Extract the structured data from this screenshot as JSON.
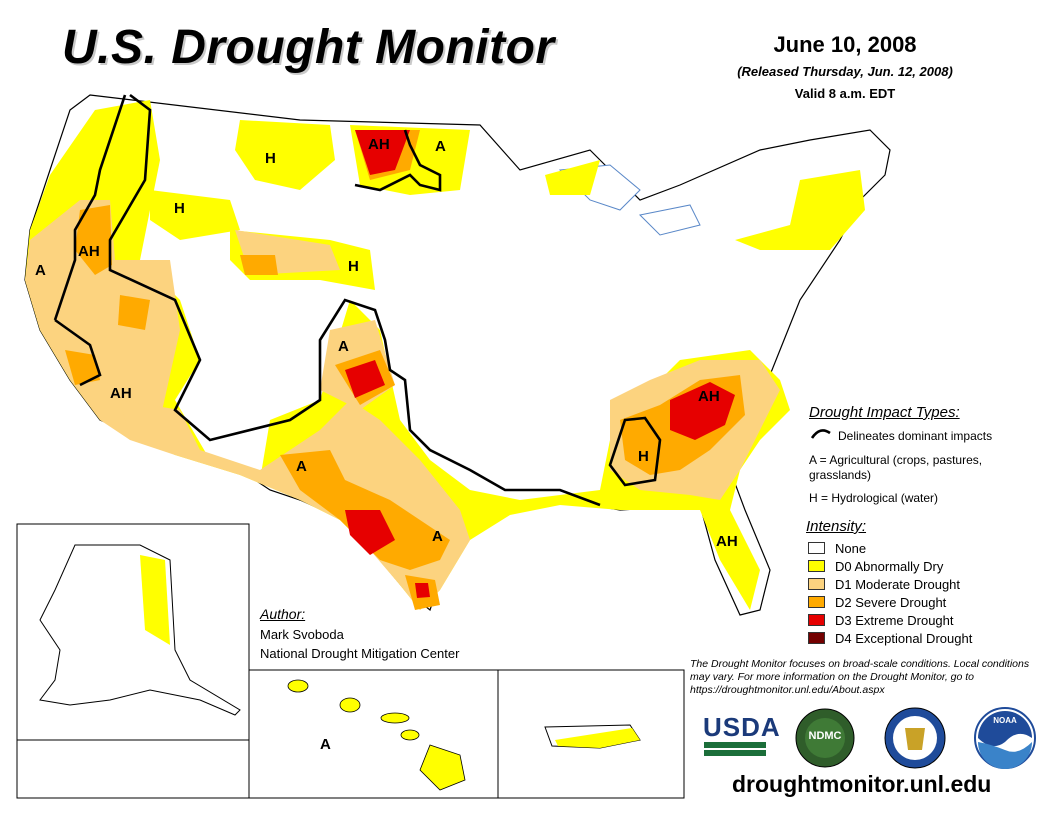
{
  "header": {
    "title": "U.S. Drought Monitor",
    "date": "June 10, 2008",
    "released": "(Released Thursday, Jun. 12, 2008)",
    "valid": "Valid 8 a.m. EDT"
  },
  "impact_types": {
    "title": "Drought Impact Types:",
    "delineates": "Delineates dominant impacts",
    "agricultural": "A = Agricultural (crops, pastures, grasslands)",
    "hydrological": "H = Hydrological (water)"
  },
  "intensity": {
    "title": "Intensity:",
    "items": [
      {
        "label": "None",
        "color": "#ffffff"
      },
      {
        "label": "D0 Abnormally Dry",
        "color": "#ffff00"
      },
      {
        "label": "D1 Moderate Drought",
        "color": "#fcd37f"
      },
      {
        "label": "D2 Severe Drought",
        "color": "#ffaa00"
      },
      {
        "label": "D3 Extreme Drought",
        "color": "#e60000"
      },
      {
        "label": "D4 Exceptional Drought",
        "color": "#730000"
      }
    ]
  },
  "author": {
    "title": "Author:",
    "name": "Mark Svoboda",
    "org": "National Drought Mitigation Center"
  },
  "note": "The Drought Monitor focuses on broad-scale conditions. Local conditions may vary. For more information on the Drought Monitor, go to https://droughtmonitor.unl.edu/About.aspx",
  "url": "droughtmonitor.unl.edu",
  "logos": {
    "usda": "USDA",
    "ndmc": "NDMC",
    "commerce_icon": "department-of-commerce-seal-icon",
    "noaa": "NOAA"
  },
  "map_labels": {
    "northern_plains_ah": "AH",
    "northern_plains_a": "A",
    "montana_h": "H",
    "idaho_h": "H",
    "wyoming_h": "H",
    "oregon_ah": "AH",
    "california_a": "A",
    "southwest_ah": "AH",
    "colorado_a": "A",
    "new_mexico_a": "A",
    "texas_a": "A",
    "southeast_ah": "AH",
    "alabama_h": "H",
    "florida_ah": "AH",
    "hawaii_a": "A"
  }
}
